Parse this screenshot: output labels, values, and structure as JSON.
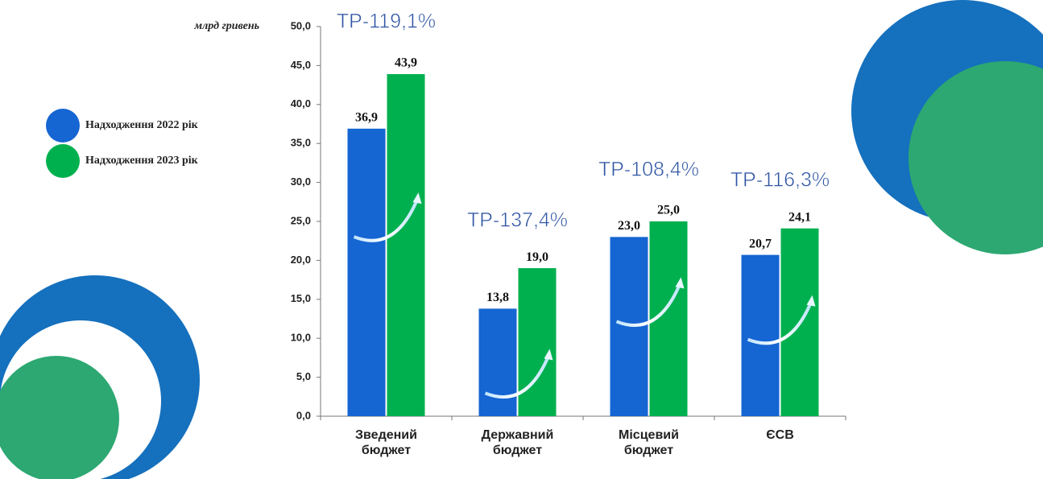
{
  "chart_data": {
    "type": "bar",
    "y_label": "млрд гривень",
    "categories": [
      "Зведений бюджет",
      "Державний бюджет",
      "Місцевий бюджет",
      "ЄСВ"
    ],
    "series": [
      {
        "name": "Надходження 2022 рік",
        "color": "#1565d2",
        "values": [
          36.9,
          13.8,
          23.0,
          20.7
        ],
        "value_labels": [
          "36,9",
          "13,8",
          "23,0",
          "20,7"
        ]
      },
      {
        "name": "Надходження 2023 рік",
        "color": "#00b04f",
        "values": [
          43.9,
          19.0,
          25.0,
          24.1
        ],
        "value_labels": [
          "43,9",
          "19,0",
          "25,0",
          "24,1"
        ]
      }
    ],
    "annotations": [
      "ТР-119,1%",
      "ТР-137,4%",
      "ТР-108,4%",
      "ТР-116,3%"
    ],
    "ylim": [
      0,
      50
    ],
    "yticks": [
      {
        "value": 0,
        "label": "0,0"
      },
      {
        "value": 5,
        "label": "5,0"
      },
      {
        "value": 10,
        "label": "10,0"
      },
      {
        "value": 15,
        "label": "15,0"
      },
      {
        "value": 20,
        "label": "20,0"
      },
      {
        "value": 25,
        "label": "25,0"
      },
      {
        "value": 30,
        "label": "30,0"
      },
      {
        "value": 35,
        "label": "35,0"
      },
      {
        "value": 40,
        "label": "40,0"
      },
      {
        "value": 45,
        "label": "45,0"
      },
      {
        "value": 50,
        "label": "50,0"
      }
    ]
  }
}
